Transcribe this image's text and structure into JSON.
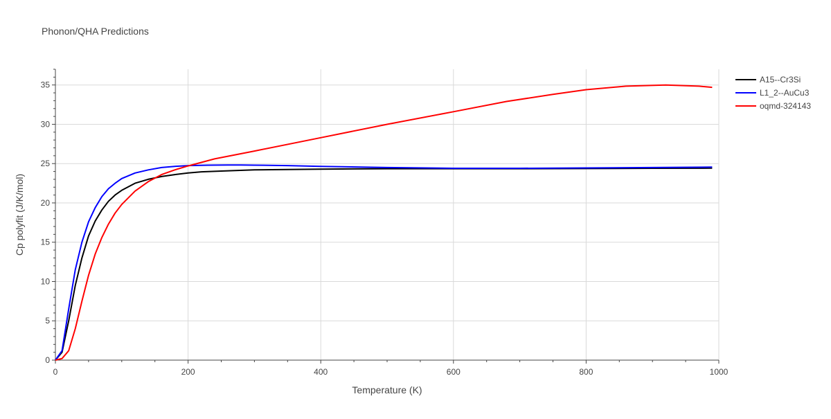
{
  "chart_data": {
    "type": "line",
    "title": "Phonon/QHA Predictions",
    "xlabel": "Temperature (K)",
    "ylabel": "Cp polyfit (J/K/mol)",
    "xlim": [
      0,
      1000
    ],
    "ylim": [
      0,
      37
    ],
    "xticks": [
      0,
      200,
      400,
      600,
      800,
      1000
    ],
    "yticks": [
      0,
      5,
      10,
      15,
      20,
      25,
      30,
      35
    ],
    "grid": true,
    "legend_position": "top-right",
    "series": [
      {
        "name": "A15--Cr3Si",
        "color": "#000000",
        "x": [
          0,
          10,
          20,
          30,
          40,
          50,
          60,
          70,
          80,
          90,
          100,
          120,
          140,
          160,
          180,
          200,
          220,
          250,
          300,
          350,
          400,
          500,
          600,
          700,
          800,
          900,
          990
        ],
        "y": [
          0,
          1,
          5,
          9.5,
          13,
          15.8,
          17.7,
          19.1,
          20.2,
          21,
          21.6,
          22.5,
          23,
          23.35,
          23.6,
          23.8,
          23.95,
          24.05,
          24.2,
          24.25,
          24.3,
          24.35,
          24.35,
          24.35,
          24.37,
          24.4,
          24.42
        ]
      },
      {
        "name": "L1_2--AuCu3",
        "color": "#0000ff",
        "x": [
          0,
          10,
          20,
          30,
          40,
          50,
          60,
          70,
          80,
          90,
          100,
          120,
          140,
          160,
          180,
          200,
          230,
          260,
          280,
          300,
          350,
          400,
          500,
          600,
          700,
          800,
          900,
          990
        ],
        "y": [
          0,
          1.2,
          6.5,
          11.5,
          15,
          17.6,
          19.4,
          20.8,
          21.8,
          22.5,
          23.1,
          23.8,
          24.2,
          24.5,
          24.65,
          24.75,
          24.8,
          24.82,
          24.82,
          24.8,
          24.75,
          24.65,
          24.5,
          24.4,
          24.4,
          24.45,
          24.5,
          24.55
        ]
      },
      {
        "name": "oqmd-324143",
        "color": "#ff0000",
        "x": [
          0,
          10,
          20,
          30,
          40,
          50,
          60,
          70,
          80,
          90,
          100,
          120,
          140,
          160,
          180,
          200,
          240,
          300,
          400,
          500,
          600,
          680,
          750,
          800,
          860,
          920,
          970,
          990
        ],
        "y": [
          0,
          0.2,
          1.2,
          4,
          7.5,
          10.8,
          13.5,
          15.6,
          17.3,
          18.7,
          19.8,
          21.5,
          22.7,
          23.6,
          24.2,
          24.7,
          25.6,
          26.6,
          28.3,
          30,
          31.6,
          32.9,
          33.8,
          34.4,
          34.85,
          35.0,
          34.85,
          34.7
        ]
      }
    ]
  }
}
